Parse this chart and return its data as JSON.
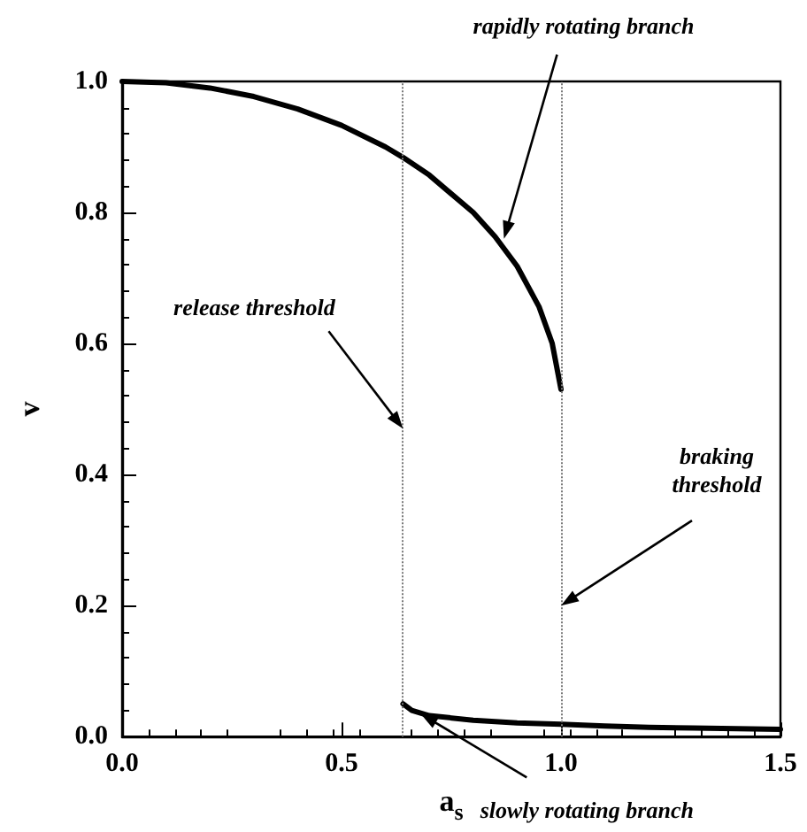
{
  "chart_data": {
    "type": "line",
    "xlabel": "a$_{s}$",
    "ylabel": "v",
    "xlim": [
      0,
      1.5
    ],
    "xticks": [
      {
        "value": 0,
        "label": "0.0"
      },
      {
        "value": 0.5,
        "label": "0.5"
      },
      {
        "value": 1,
        "label": "1.0"
      },
      {
        "value": 1.5,
        "label": "1.5"
      }
    ],
    "ylim": [
      0,
      1
    ],
    "yticks": [
      {
        "value": 0,
        "label": "0.0"
      },
      {
        "value": 0.2,
        "label": "0.2"
      },
      {
        "value": 0.4,
        "label": "0.4"
      },
      {
        "value": 0.6,
        "label": "0.6"
      },
      {
        "value": 0.8,
        "label": "0.8"
      },
      {
        "value": 1,
        "label": "1.0"
      }
    ],
    "series": [
      {
        "color": "#000000",
        "x": [
          0,
          0.1,
          0.2,
          0.3,
          0.4,
          0.5,
          0.6,
          0.64,
          0.7,
          0.8,
          0.85,
          0.9,
          0.95,
          0.98,
          1.0
        ],
        "values": [
          1.0,
          0.998,
          0.99,
          0.977,
          0.958,
          0.933,
          0.9,
          0.884,
          0.857,
          0.8,
          0.763,
          0.718,
          0.656,
          0.6,
          0.53
        ]
      },
      {
        "color": "#000000",
        "x": [
          0.64,
          0.66,
          0.7,
          0.8,
          0.9,
          1.0,
          1.1,
          1.2,
          1.3,
          1.4,
          1.5
        ],
        "values": [
          0.05,
          0.04,
          0.032,
          0.025,
          0.021,
          0.019,
          0.016,
          0.014,
          0.013,
          0.012,
          0.011
        ]
      }
    ],
    "ref_lines": [
      {
        "axis": "x",
        "value": 0.64,
        "color": "#777777",
        "line_style": "dotted"
      },
      {
        "axis": "x",
        "value": 1.0,
        "color": "#777777",
        "line_style": "dotted"
      }
    ],
    "annotations": [
      {
        "text": "rapidly rotating branch",
        "x": 0.87,
        "y": 0.76
      },
      {
        "text": "release threshold",
        "x": 0.64,
        "y": 0.47
      },
      {
        "text": "braking\nthreshold",
        "x": 1.0,
        "y": 0.2
      },
      {
        "text": "slowly rotating branch",
        "x": 0.68,
        "y": 0.035
      }
    ],
    "marker": "none",
    "line_style": "solid"
  }
}
